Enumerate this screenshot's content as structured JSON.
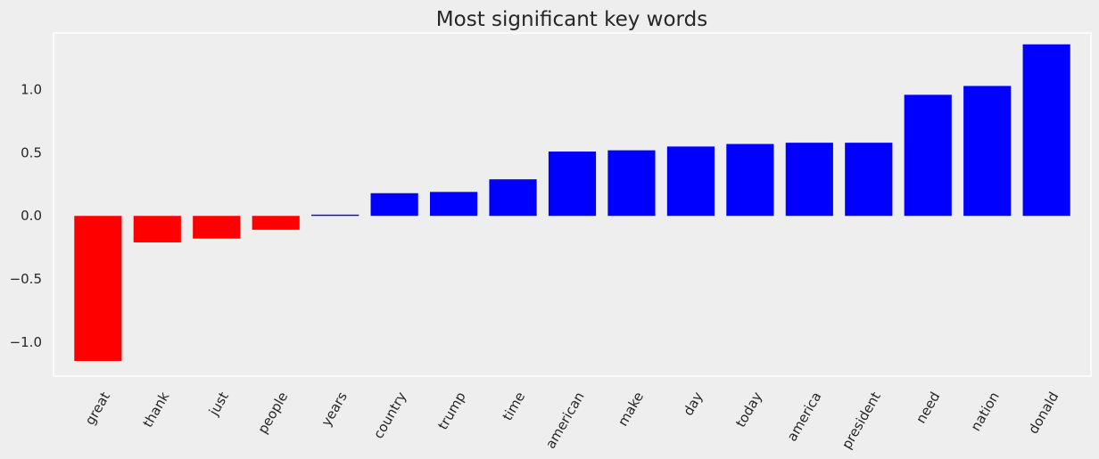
{
  "chart_data": {
    "type": "bar",
    "title": "Most significant key words",
    "xlabel": "",
    "ylabel": "",
    "categories": [
      "great",
      "thank",
      "just",
      "people",
      "years",
      "country",
      "trump",
      "time",
      "american",
      "make",
      "day",
      "today",
      "america",
      "president",
      "need",
      "nation",
      "donald"
    ],
    "values": [
      -1.15,
      -0.21,
      -0.18,
      -0.11,
      0.01,
      0.18,
      0.19,
      0.29,
      0.51,
      0.52,
      0.55,
      0.57,
      0.58,
      0.58,
      0.96,
      1.03,
      1.36
    ],
    "ylim": [
      -1.27,
      1.45
    ],
    "yticks": [
      -1.0,
      -0.5,
      0.0,
      0.5,
      1.0
    ],
    "ytick_labels": [
      "−1.0",
      "−0.5",
      "0.0",
      "0.5",
      "1.0"
    ],
    "grid": false,
    "legend": "none",
    "colors": {
      "negative": "#ff0000",
      "positive": "#0000ff",
      "background": "#eeeeee",
      "axes_edge": "#ffffff",
      "text": "#262626"
    }
  }
}
